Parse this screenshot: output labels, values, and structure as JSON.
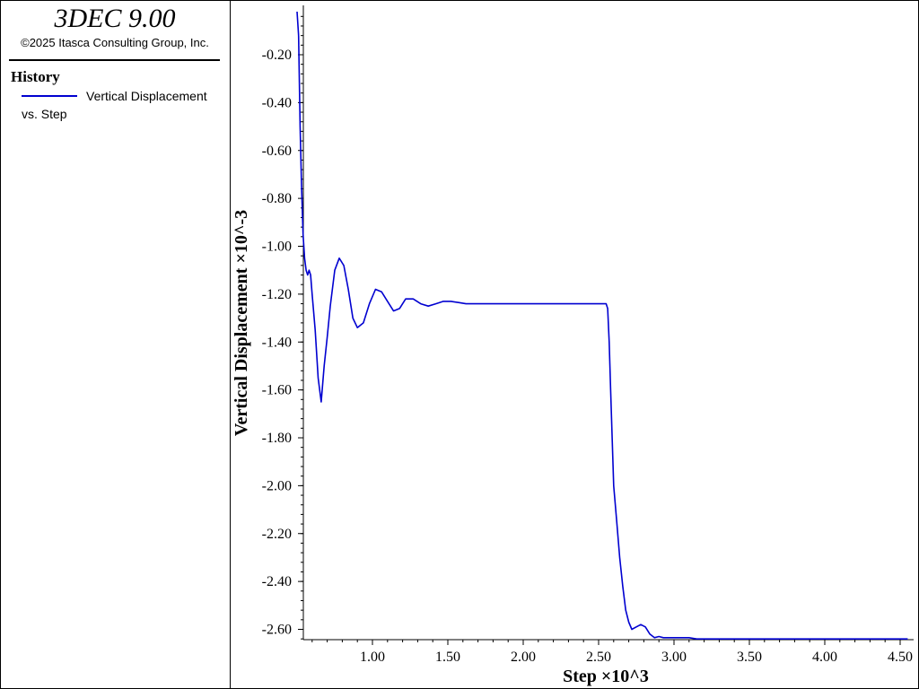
{
  "app": {
    "title": "3DEC 9.00",
    "copyright": "©2025 Itasca Consulting Group, Inc."
  },
  "legend": {
    "heading": "History",
    "entries": [
      {
        "label_line1": "Vertical Displacement",
        "label_line2": "vs. Step",
        "color": "#0000d0"
      }
    ]
  },
  "chart_data": {
    "type": "line",
    "xlabel": "Step ×10^3",
    "ylabel": "Vertical Displacement ×10^-3",
    "xlim": [
      0.5,
      4.58
    ],
    "ylim": [
      -2.64,
      -0.02
    ],
    "grid": false,
    "x_ticks": [
      {
        "value": 1.0,
        "label": "1.00"
      },
      {
        "value": 1.5,
        "label": "1.50"
      },
      {
        "value": 2.0,
        "label": "2.00"
      },
      {
        "value": 2.5,
        "label": "2.50"
      },
      {
        "value": 3.0,
        "label": "3.00"
      },
      {
        "value": 3.5,
        "label": "3.50"
      },
      {
        "value": 4.0,
        "label": "4.00"
      },
      {
        "value": 4.5,
        "label": "4.50"
      }
    ],
    "y_ticks": [
      {
        "value": -0.2,
        "label": "-0.20"
      },
      {
        "value": -0.4,
        "label": "-0.40"
      },
      {
        "value": -0.6,
        "label": "-0.60"
      },
      {
        "value": -0.8,
        "label": "-0.80"
      },
      {
        "value": -1.0,
        "label": "-1.00"
      },
      {
        "value": -1.2,
        "label": "-1.20"
      },
      {
        "value": -1.4,
        "label": "-1.40"
      },
      {
        "value": -1.6,
        "label": "-1.60"
      },
      {
        "value": -1.8,
        "label": "-1.80"
      },
      {
        "value": -2.0,
        "label": "-2.00"
      },
      {
        "value": -2.2,
        "label": "-2.20"
      },
      {
        "value": -2.4,
        "label": "-2.40"
      },
      {
        "value": -2.6,
        "label": "-2.60"
      }
    ],
    "series": [
      {
        "color": "#0000d0",
        "x": [
          0.5,
          0.51,
          0.52,
          0.53,
          0.54,
          0.55,
          0.56,
          0.57,
          0.58,
          0.59,
          0.6,
          0.62,
          0.64,
          0.66,
          0.68,
          0.7,
          0.72,
          0.75,
          0.78,
          0.81,
          0.84,
          0.87,
          0.9,
          0.94,
          0.98,
          1.02,
          1.06,
          1.1,
          1.14,
          1.18,
          1.22,
          1.27,
          1.32,
          1.37,
          1.42,
          1.47,
          1.52,
          1.57,
          1.62,
          1.67,
          1.72,
          1.8,
          1.9,
          2.0,
          2.2,
          2.4,
          2.55,
          2.56,
          2.57,
          2.58,
          2.59,
          2.6,
          2.62,
          2.64,
          2.66,
          2.68,
          2.7,
          2.72,
          2.75,
          2.78,
          2.81,
          2.84,
          2.87,
          2.9,
          2.93,
          2.96,
          3.0,
          3.05,
          3.1,
          3.15,
          3.2,
          3.3,
          3.4,
          3.6,
          4.0,
          4.55
        ],
        "y": [
          -0.02,
          -0.12,
          -0.5,
          -0.75,
          -0.95,
          -1.05,
          -1.1,
          -1.12,
          -1.1,
          -1.12,
          -1.2,
          -1.35,
          -1.55,
          -1.65,
          -1.5,
          -1.38,
          -1.25,
          -1.1,
          -1.05,
          -1.08,
          -1.18,
          -1.3,
          -1.34,
          -1.32,
          -1.24,
          -1.18,
          -1.19,
          -1.23,
          -1.27,
          -1.26,
          -1.22,
          -1.22,
          -1.24,
          -1.25,
          -1.24,
          -1.23,
          -1.23,
          -1.235,
          -1.24,
          -1.24,
          -1.24,
          -1.24,
          -1.24,
          -1.24,
          -1.24,
          -1.24,
          -1.24,
          -1.26,
          -1.4,
          -1.6,
          -1.8,
          -2.0,
          -2.15,
          -2.3,
          -2.42,
          -2.52,
          -2.57,
          -2.6,
          -2.59,
          -2.58,
          -2.59,
          -2.62,
          -2.635,
          -2.63,
          -2.635,
          -2.635,
          -2.635,
          -2.635,
          -2.635,
          -2.64,
          -2.64,
          -2.64,
          -2.64,
          -2.64,
          -2.64,
          -2.64
        ]
      }
    ]
  }
}
